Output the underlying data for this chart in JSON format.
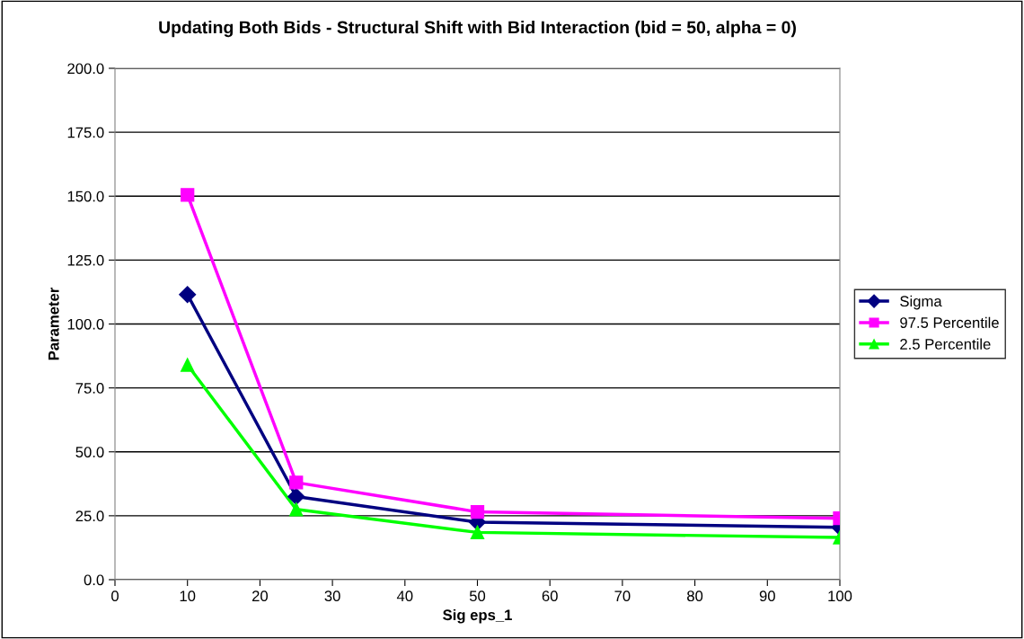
{
  "chart_data": {
    "type": "line",
    "title": "Updating Both Bids - Structural Shift with Bid Interaction (bid = 50, alpha = 0)",
    "xlabel": "Sig eps_1",
    "ylabel": "Parameter",
    "x": [
      10,
      25,
      50,
      100
    ],
    "series": [
      {
        "name": "Sigma",
        "color": "#000080",
        "marker": "diamond",
        "values": [
          111.5,
          32.5,
          22.5,
          20.5
        ]
      },
      {
        "name": "97.5 Percentile",
        "color": "#ff00ff",
        "marker": "square",
        "values": [
          150.5,
          38,
          26.5,
          24
        ]
      },
      {
        "name": "2.5 Percentile",
        "color": "#00ff00",
        "marker": "triangle",
        "values": [
          84,
          27.5,
          18.5,
          16.5
        ]
      }
    ],
    "xlim": [
      0,
      100
    ],
    "xticks": [
      0,
      10,
      20,
      30,
      40,
      50,
      60,
      70,
      80,
      90,
      100
    ],
    "ylim": [
      0,
      200
    ],
    "yticks": [
      {
        "value": 0,
        "label": "0.0"
      },
      {
        "value": 25,
        "label": "25.0"
      },
      {
        "value": 50,
        "label": "50.0"
      },
      {
        "value": 75,
        "label": "75.0"
      },
      {
        "value": 100,
        "label": "100.0"
      },
      {
        "value": 125,
        "label": "125.0"
      },
      {
        "value": 150,
        "label": "150.0"
      },
      {
        "value": 175,
        "label": "175.0"
      },
      {
        "value": 200,
        "label": "200.0"
      }
    ],
    "grid": "y",
    "legend": "right",
    "line_style": "solid"
  }
}
